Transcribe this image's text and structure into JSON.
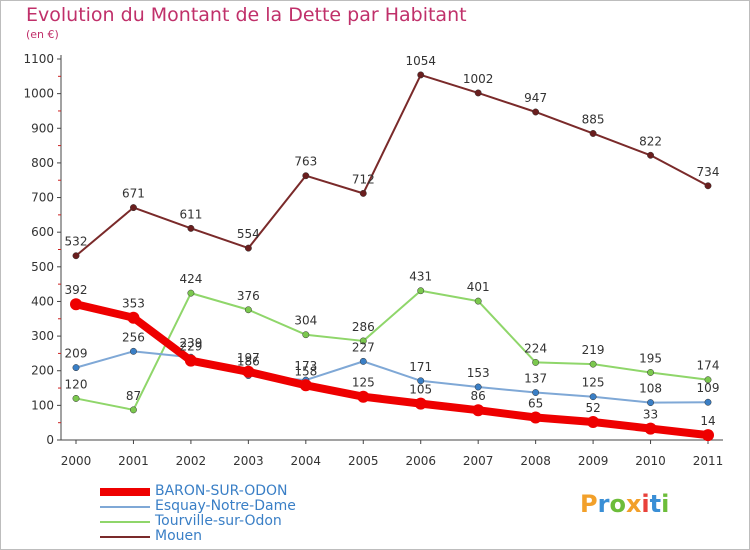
{
  "title": "Evolution du Montant de la Dette par Habitant",
  "unit": "(en €)",
  "logo": {
    "letters": [
      "P",
      "r",
      "o",
      "x",
      "i",
      "t",
      "i"
    ],
    "colors": [
      "#f2a02a",
      "#3a8fd6",
      "#6cbd3a",
      "#f2a02a",
      "#e8413b",
      "#3a8fd6",
      "#6cbd3a"
    ]
  },
  "chart_data": {
    "type": "line",
    "x": [
      2000,
      2001,
      2002,
      2003,
      2004,
      2005,
      2006,
      2007,
      2008,
      2009,
      2010,
      2011
    ],
    "ylim": [
      0,
      1100
    ],
    "yticks": [
      0,
      100,
      200,
      300,
      400,
      500,
      600,
      700,
      800,
      900,
      1000,
      1100
    ],
    "grid": false,
    "legend_position": "bottom-left",
    "series": [
      {
        "name": "BARON-SUR-ODON",
        "values": [
          392,
          353,
          229,
          197,
          158,
          125,
          105,
          86,
          65,
          52,
          33,
          14
        ],
        "color": "#ee0000",
        "width": 8,
        "marker_color": "#ee0000"
      },
      {
        "name": "Esquay-Notre-Dame",
        "values": [
          209,
          256,
          239,
          186,
          173,
          227,
          171,
          153,
          137,
          125,
          108,
          109
        ],
        "color": "#7fa8d6",
        "width": 2,
        "marker_color": "#3a7fc6"
      },
      {
        "name": "Tourville-sur-Odon",
        "values": [
          120,
          87,
          424,
          376,
          304,
          286,
          431,
          401,
          224,
          219,
          195,
          174
        ],
        "color": "#8fd66a",
        "width": 2,
        "marker_color": "#7bc84e"
      },
      {
        "name": "Mouen",
        "values": [
          532,
          671,
          611,
          554,
          763,
          712,
          1054,
          1002,
          947,
          885,
          822,
          734
        ],
        "color": "#7a2a2a",
        "width": 2,
        "marker_color": "#6a1e1e"
      }
    ]
  }
}
